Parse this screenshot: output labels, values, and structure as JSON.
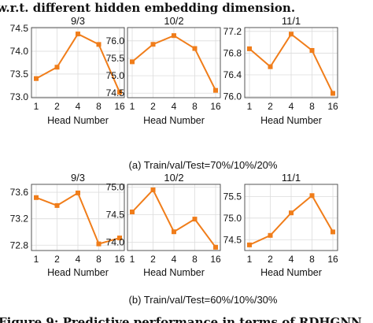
{
  "header_text": "w.r.t. different hidden embedding dimension.",
  "footer_text": "Figure 9: Predictive performance in terms of RDHGNN",
  "chart_data": [
    {
      "type": "line",
      "row": 0,
      "col": 0,
      "title": "9/3",
      "xlabel": "Head Number",
      "ylabel": "",
      "categories": [
        "1",
        "2",
        "4",
        "8",
        "16"
      ],
      "values": [
        73.4,
        73.65,
        74.38,
        74.15,
        73.1
      ],
      "ylim": [
        72.98,
        74.52
      ],
      "yticks": [
        73.0,
        73.5,
        74.0,
        74.5
      ],
      "tick_labels": [
        "73.0",
        "73.5",
        "74.0",
        "74.5"
      ]
    },
    {
      "type": "line",
      "row": 0,
      "col": 1,
      "title": "10/2",
      "xlabel": "Head Number",
      "ylabel": "",
      "categories": [
        "1",
        "2",
        "4",
        "8",
        "16"
      ],
      "values": [
        75.4,
        75.9,
        76.15,
        75.78,
        74.58
      ],
      "ylim": [
        74.37,
        76.38
      ],
      "yticks": [
        74.5,
        75.0,
        75.5,
        76.0
      ],
      "tick_labels": [
        "74.5",
        "75.0",
        "75.5",
        "76.0"
      ]
    },
    {
      "type": "line",
      "row": 0,
      "col": 2,
      "title": "11/1",
      "xlabel": "Head Number",
      "ylabel": "",
      "categories": [
        "1",
        "2",
        "4",
        "8",
        "16"
      ],
      "values": [
        76.88,
        76.55,
        77.15,
        76.85,
        76.06
      ],
      "ylim": [
        75.98,
        77.27
      ],
      "yticks": [
        76.0,
        76.4,
        76.8,
        77.2
      ],
      "tick_labels": [
        "76.0",
        "76.4",
        "76.8",
        "77.2"
      ]
    },
    {
      "type": "line",
      "row": 1,
      "col": 0,
      "title": "9/3",
      "xlabel": "Head Number",
      "ylabel": "",
      "categories": [
        "1",
        "2",
        "4",
        "8",
        "16"
      ],
      "values": [
        73.52,
        73.4,
        73.59,
        72.82,
        72.91
      ],
      "ylim": [
        72.72,
        73.72
      ],
      "yticks": [
        72.8,
        73.2,
        73.6
      ],
      "tick_labels": [
        "72.8",
        "73.2",
        "73.6"
      ]
    },
    {
      "type": "line",
      "row": 1,
      "col": 1,
      "title": "10/2",
      "xlabel": "Head Number",
      "ylabel": "",
      "categories": [
        "1",
        "2",
        "4",
        "8",
        "16"
      ],
      "values": [
        74.55,
        74.95,
        74.19,
        74.42,
        73.91
      ],
      "ylim": [
        73.85,
        75.05
      ],
      "yticks": [
        74.0,
        74.5,
        75.0
      ],
      "tick_labels": [
        "74.0",
        "74.5",
        "75.0"
      ]
    },
    {
      "type": "line",
      "row": 1,
      "col": 2,
      "title": "11/1",
      "xlabel": "Head Number",
      "ylabel": "",
      "categories": [
        "1",
        "2",
        "4",
        "8",
        "16"
      ],
      "values": [
        74.38,
        74.6,
        75.12,
        75.52,
        74.68
      ],
      "ylim": [
        74.25,
        75.78
      ],
      "yticks": [
        74.5,
        75.0,
        75.5
      ],
      "tick_labels": [
        "74.5",
        "75.0",
        "75.5"
      ]
    }
  ],
  "captions": [
    "(a) Train/val/Test=70%/10%/20%",
    "(b) Train/val/Test=60%/10%/30%"
  ]
}
